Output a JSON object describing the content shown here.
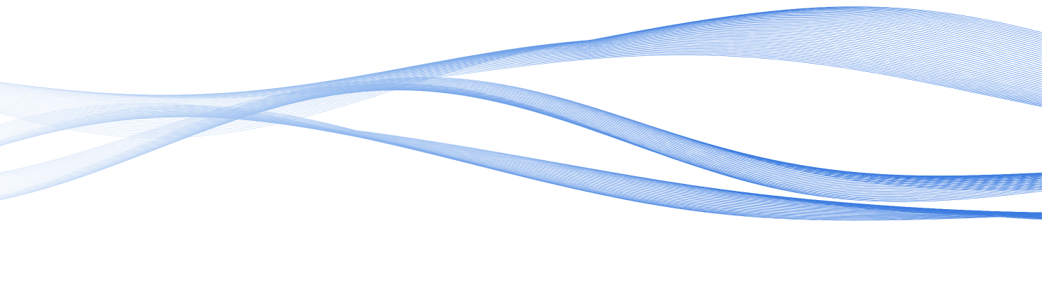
{
  "image": {
    "subject": "abstract-wave-mesh",
    "colors": {
      "background": "#ffffff",
      "wave_light": "#cfe0f7",
      "wave_mid": "#8db6ee",
      "wave_strong": "#3a7be0"
    }
  }
}
